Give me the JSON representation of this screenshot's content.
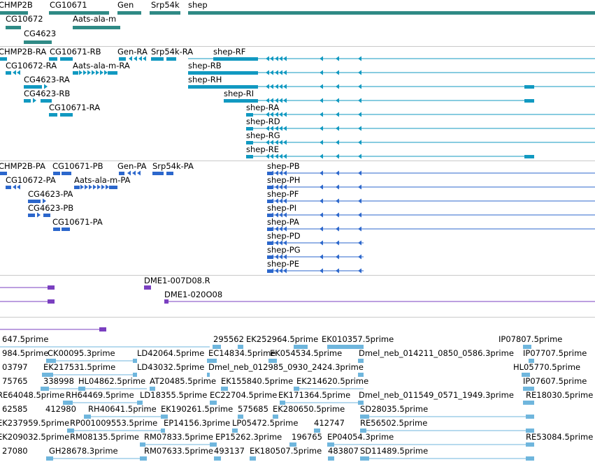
{
  "colors": {
    "gene": "#2f8a85",
    "transcript": "#1199c1",
    "protein": "#2c67cc",
    "clone": "#7a3fc0",
    "est": "#6fb6dd",
    "separator": "#c9c9c9"
  },
  "tracks": {
    "genes": {
      "labels": [
        "CHMP2B",
        "CG10671",
        "Gen",
        "Srp54k",
        "shep",
        "CG10672",
        "Aats-ala-m",
        "CG4623"
      ]
    },
    "transcripts": {
      "labels": [
        "CHMP2B-RA",
        "CG10671-RB",
        "Gen-RA",
        "Srp54k-RA",
        "shep-RF",
        "CG10672-RA",
        "Aats-ala-m-RA",
        "shep-RB",
        "CG4623-RA",
        "shep-RH",
        "CG4623-RB",
        "shep-RI",
        "CG10671-RA",
        "shep-RA",
        "shep-RD",
        "shep-RG",
        "shep-RE"
      ]
    },
    "proteins": {
      "labels": [
        "CHMP2B-PA",
        "CG10671-PB",
        "Gen-PA",
        "Srp54k-PA",
        "shep-PB",
        "CG10672-PA",
        "Aats-ala-m-PA",
        "shep-PH",
        "CG4623-PA",
        "shep-PF",
        "CG4623-PB",
        "shep-PI",
        "CG10671-PA",
        "shep-PA",
        "shep-PD",
        "shep-PG",
        "shep-PE"
      ]
    },
    "clones": {
      "labels": [
        "DME1-007D08.R",
        "DME1-020O08"
      ]
    },
    "ests": {
      "labels": [
        "647.5prime",
        "295562",
        "EK252964.5prime",
        "EK010357.5prime",
        "IP07807.5prime",
        "984.5prime",
        "CK00095.3prime",
        "LD42064.5prime",
        "EC14834.5prime",
        "EK054534.5prime",
        "Dmel_neb_014211_0850_0586.3prime",
        "IP07707.5prime",
        "03797",
        "EK217531.5prime",
        "LD43032.5prime",
        "Dmel_neb_012985_0930_2424.3prime",
        "HL05770.5prime",
        "75765",
        "338998",
        "HL04862.5prime",
        "AT20485.5prime",
        "EK155840.5prime",
        "EK214620.5prime",
        "IP07607.5prime",
        "RE64048.5prime",
        "RH64469.5prime",
        "LD18355.5prime",
        "EC22704.5prime",
        "EK171364.5prime",
        "Dmel_neb_011549_0571_1949.3prime",
        "RE18030.5prime",
        "62585",
        "412980",
        "RH40641.5prime",
        "EK190261.5prime",
        "575685",
        "EK280650.5prime",
        "SD28035.5prime",
        "EK237959.5prime",
        "RP001009553.5prime",
        "EP14156.3prime",
        "LP05472.5prime",
        "412747",
        "RE56502.5prime",
        "EK209032.5prime",
        "RM08135.5prime",
        "RM07833.5prime",
        "EP15262.3prime",
        "196765",
        "EP04054.3prime",
        "RE53084.5prime",
        "27080",
        "GH28678.3prime",
        "RM07633.5prime",
        "493137",
        "EK180507.5prime",
        "483807",
        "SD11489.5prime"
      ]
    }
  }
}
